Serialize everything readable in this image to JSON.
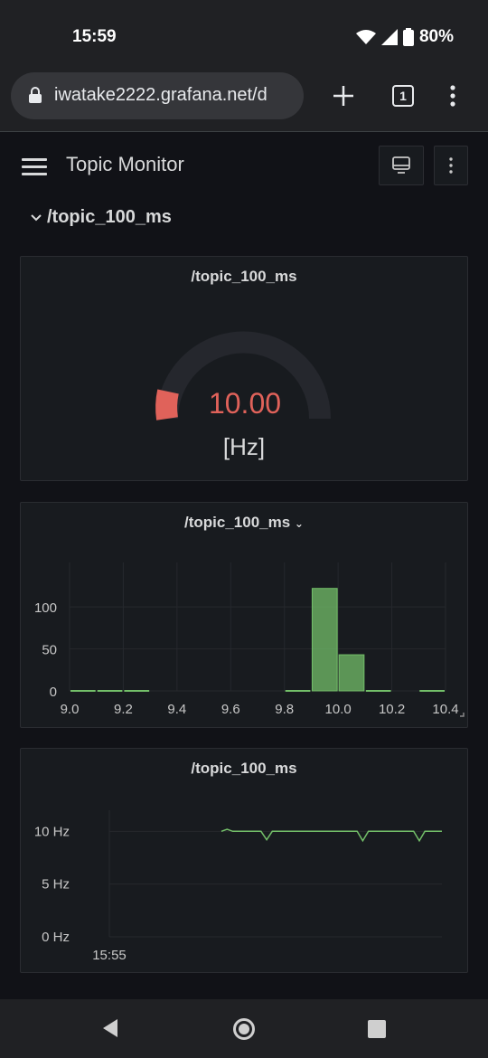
{
  "status": {
    "time": "15:59",
    "battery": "80%"
  },
  "browser": {
    "url": "iwatake2222.grafana.net/d",
    "tab_count": "1"
  },
  "dashboard": {
    "title": "Topic Monitor",
    "row_title": "/topic_100_ms"
  },
  "gauge": {
    "title": "/topic_100_ms",
    "value": "10.00",
    "unit": "[Hz]",
    "accent": "#e0625a"
  },
  "histogram": {
    "title": "/topic_100_ms"
  },
  "timeseries": {
    "title": "/topic_100_ms"
  },
  "chart_data": [
    {
      "type": "bar",
      "title": "/topic_100_ms",
      "xlim": [
        9.0,
        10.4
      ],
      "ylim": [
        0,
        140
      ],
      "x_ticks": [
        "9.0",
        "9.2",
        "9.4",
        "9.6",
        "9.8",
        "10.0",
        "10.2",
        "10.4"
      ],
      "y_ticks": [
        "0",
        "50",
        "100"
      ],
      "bins": [
        {
          "x0": 9.0,
          "x1": 9.1,
          "count": 0
        },
        {
          "x0": 9.1,
          "x1": 9.2,
          "count": 0
        },
        {
          "x0": 9.2,
          "x1": 9.3,
          "count": 0
        },
        {
          "x0": 9.8,
          "x1": 9.9,
          "count": 0
        },
        {
          "x0": 9.9,
          "x1": 10.0,
          "count": 122
        },
        {
          "x0": 10.0,
          "x1": 10.1,
          "count": 43
        },
        {
          "x0": 10.1,
          "x1": 10.2,
          "count": 0
        },
        {
          "x0": 10.3,
          "x1": 10.4,
          "count": 0
        }
      ],
      "color": "#73bf69"
    },
    {
      "type": "line",
      "title": "/topic_100_ms",
      "y_ticks": [
        "10 Hz",
        "5 Hz",
        "0 Hz"
      ],
      "x_ticks": [
        "15:55"
      ],
      "ylim": [
        0,
        12
      ],
      "series": [
        {
          "values": [
            10,
            10.2,
            10,
            10,
            10,
            10,
            10,
            10,
            9.2,
            10,
            10,
            10,
            10,
            10,
            10,
            10,
            10,
            10,
            10,
            10,
            10,
            10,
            10,
            10,
            10,
            9.1,
            10,
            10,
            10,
            10,
            10,
            10,
            10,
            10,
            10,
            9.1,
            10,
            10,
            10,
            10
          ]
        }
      ],
      "color": "#73bf69"
    }
  ]
}
